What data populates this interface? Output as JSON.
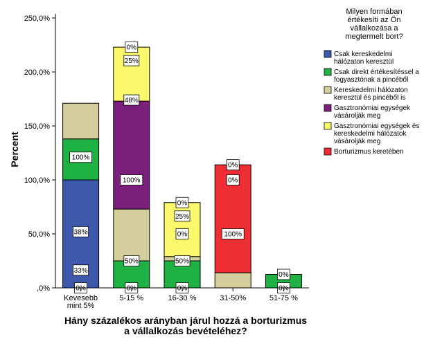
{
  "chart_data": {
    "type": "bar",
    "stacked": true,
    "ylabel": "Percent",
    "xlabel": [
      "Hány százalékos arányban járul hozzá a borturizmus",
      "a vállalkozás bevételéhez?"
    ],
    "ylim": [
      0,
      250
    ],
    "y_ticks": [
      0,
      50,
      100,
      150,
      200,
      250
    ],
    "y_tick_labels": [
      ",0%",
      "50,0%",
      "100,0%",
      "150,0%",
      "200,0%",
      "250,0%"
    ],
    "categories": [
      {
        "label": [
          "Kevesebb",
          "mint 5%"
        ]
      },
      {
        "label": [
          "5-15 %"
        ]
      },
      {
        "label": [
          "16-30 %"
        ]
      },
      {
        "label": [
          "31-50%"
        ]
      },
      {
        "label": [
          "51-75 %"
        ]
      }
    ],
    "legend_title": [
      "Milyen formában",
      "értékesíti az Ön",
      "vállalkozása a",
      "megtermelt bort?"
    ],
    "legend_position": "right",
    "series": [
      {
        "name": [
          "Csak kereskedelmi",
          "hálózaton keresztül"
        ],
        "color": "#3e58ac",
        "values": [
          100,
          0,
          0,
          0,
          0
        ]
      },
      {
        "name": [
          "Csak direkt értékesítéssel a",
          "fogyasztónak a pincéből"
        ],
        "color": "#20b145",
        "values": [
          38,
          25,
          25,
          0,
          12.5
        ]
      },
      {
        "name": [
          "Kereskedelmi hálózaton",
          "keresztül és pincéből is"
        ],
        "color": "#d4cd9c",
        "values": [
          33,
          48,
          4,
          14,
          0
        ]
      },
      {
        "name": [
          "Gasztronómiai egységek",
          "vásárolják meg"
        ],
        "color": "#7b1f7c",
        "values": [
          0,
          100,
          0,
          0,
          0
        ]
      },
      {
        "name": [
          "Gasztronómiai egységek és",
          "kereskedelmi hálózatok",
          "vásárolják meg"
        ],
        "color": "#fbf86c",
        "values": [
          0,
          50,
          50,
          0,
          0
        ]
      },
      {
        "name": [
          "Borturizmus keretében"
        ],
        "color": "#ef2d34",
        "values": [
          0,
          0,
          0,
          100,
          0
        ]
      }
    ],
    "data_labels": [
      {
        "category": 0,
        "y": 0,
        "text": "0%"
      },
      {
        "category": 0,
        "y": 16.5,
        "text": "33%"
      },
      {
        "category": 0,
        "y": 52,
        "text": "38%"
      },
      {
        "category": 0,
        "y": 121,
        "text": "100%"
      },
      {
        "category": 1,
        "y": 0,
        "text": "0%"
      },
      {
        "category": 1,
        "y": 25,
        "text": "50%"
      },
      {
        "category": 1,
        "y": 100,
        "text": "100%"
      },
      {
        "category": 1,
        "y": 174,
        "text": "48%"
      },
      {
        "category": 1,
        "y": 210.5,
        "text": "25%"
      },
      {
        "category": 1,
        "y": 223,
        "text": "0%"
      },
      {
        "category": 2,
        "y": 0,
        "text": "0%"
      },
      {
        "category": 2,
        "y": 25,
        "text": "50%"
      },
      {
        "category": 2,
        "y": 50,
        "text": "0%"
      },
      {
        "category": 2,
        "y": 66.5,
        "text": "25%"
      },
      {
        "category": 2,
        "y": 79,
        "text": "0%"
      },
      {
        "category": 3,
        "y": 50,
        "text": "100%"
      },
      {
        "category": 3,
        "y": 100,
        "text": "0%"
      },
      {
        "category": 3,
        "y": 114,
        "text": "0%"
      },
      {
        "category": 4,
        "y": 0,
        "text": "0%"
      },
      {
        "category": 4,
        "y": 12.5,
        "text": "0%"
      }
    ]
  }
}
